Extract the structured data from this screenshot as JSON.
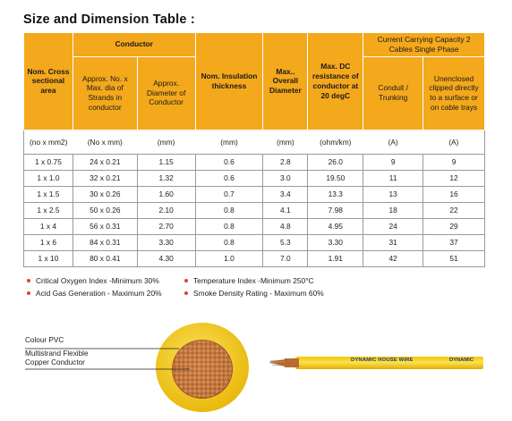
{
  "title": "Size and Dimension Table :",
  "headers": {
    "nom_cross": "Nom. Cross sectional area",
    "conductor": "Conductor",
    "strands": "Approx. No. x Max. dia of Strands in conductor",
    "diameter": "Approx. Diameter of Conductor",
    "insulation": "Nom. Insulation thickness",
    "overall": "Max.. Overall Diameter",
    "resistance": "Max. DC resistance of conductor at 20 degC",
    "capacity": "Current Carrying Capacity 2 Cables Single Phase",
    "conduit": "Conduit / Trunking",
    "unenclosed": "Unenclosed clipped directly to a surface or on cable trays"
  },
  "units": [
    "(no x mm2)",
    "(No x mm)",
    "(mm)",
    "(mm)",
    "(mm)",
    "(ohm/km)",
    "(A)",
    "(A)"
  ],
  "rows": [
    [
      "1 x 0.75",
      "24 x 0.21",
      "1.15",
      "0.6",
      "2.8",
      "26.0",
      "9",
      "9"
    ],
    [
      "1 x 1.0",
      "32 x 0.21",
      "1.32",
      "0.6",
      "3.0",
      "19.50",
      "11",
      "12"
    ],
    [
      "1 x 1.5",
      "30 x 0.26",
      "1.60",
      "0.7",
      "3.4",
      "13.3",
      "13",
      "16"
    ],
    [
      "1 x 2.5",
      "50 x 0.26",
      "2.10",
      "0.8",
      "4.1",
      "7.98",
      "18",
      "22"
    ],
    [
      "1 x 4",
      "56 x 0.31",
      "2.70",
      "0.8",
      "4.8",
      "4.95",
      "24",
      "29"
    ],
    [
      "1 x 6",
      "84 x 0.31",
      "3.30",
      "0.8",
      "5.3",
      "3.30",
      "31",
      "37"
    ],
    [
      "1 x 10",
      "80 x 0.41",
      "4.30",
      "1.0",
      "7.0",
      "1.91",
      "42",
      "51"
    ]
  ],
  "features": [
    "Critical Oxygen Index -Minimum 30%",
    "Temperature Index -Minimum 250°C",
    "Acid Gas Generation - Maximum 20%",
    "Smoke Density Rating - Maximum 60%"
  ],
  "diagram": {
    "label_pvc": "Colour PVC",
    "label_conductor_1": "Multistrand Flexible",
    "label_conductor_2": "Copper Conductor",
    "print_brand": "DYNAMIC HOUSE WIRE",
    "print_short": "DYNAMIC"
  },
  "colors": {
    "header_bg": "#f4a81c",
    "bullet": "#e0442a",
    "insulation": "#f7d21d",
    "copper": "#b86a32"
  }
}
